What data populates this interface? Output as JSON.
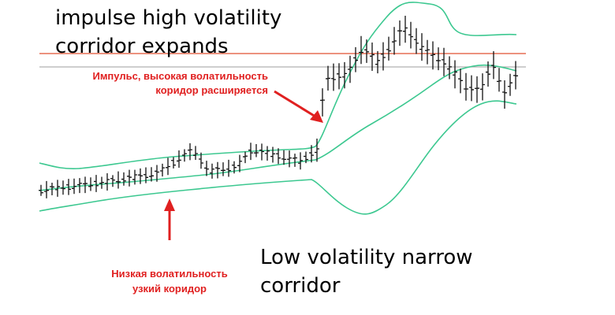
{
  "annotations": {
    "top_en": [
      "impulse high volatility",
      "corridor expands"
    ],
    "top_ru": [
      "Импульс, высокая волатильность",
      "коридор расширяется"
    ],
    "bottom_ru": [
      "Низкая волатильность",
      "узкий коридор"
    ],
    "bottom_en": [
      "Low volatility narrow",
      "corridor"
    ]
  }
}
